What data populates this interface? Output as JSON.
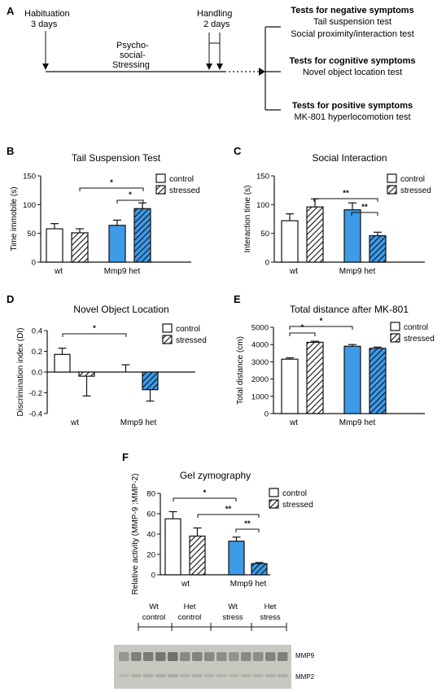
{
  "colors": {
    "control_fill": "#ffffff",
    "het_fill": "#3d9be8",
    "stroke": "#111111",
    "gel_bg": "#c9c8c0",
    "gel_band": "#6c6c6c"
  },
  "panel_a": {
    "letter": "A",
    "habituation_line1": "Habituation",
    "habituation_line2": "3 days",
    "psycho_line1": "Psycho-",
    "psycho_line2": "social-",
    "psycho_line3": "Stressing",
    "handling_line1": "Handling",
    "handling_line2": "2 days",
    "neg_title": "Tests for negative symptoms",
    "neg_line1": "Tail suspension test",
    "neg_line2": "Social proximity/interaction test",
    "cog_title": "Tests for cognitive symptoms",
    "cog_line1": "Novel object location test",
    "pos_title": "Tests for positive symptoms",
    "pos_line1": "MK-801 hyperlocomotion test"
  },
  "legend": {
    "control": "control",
    "stressed": "stressed"
  },
  "chart_data": [
    {
      "id": "B",
      "type": "bar",
      "title": "Tail Suspension Test",
      "ylabel": "Time immobile (s)",
      "categories": [
        "wt",
        "Mmp9 het"
      ],
      "series": [
        {
          "name": "control",
          "values": [
            58,
            64
          ],
          "errors": [
            9,
            9
          ]
        },
        {
          "name": "stressed",
          "values": [
            51,
            93
          ],
          "errors": [
            7,
            10
          ]
        }
      ],
      "ylim": [
        0,
        150
      ],
      "yticks": [
        0,
        50,
        100,
        150
      ],
      "significance": [
        {
          "label": "*",
          "between": "wt stressed vs Mmp9 het stressed"
        },
        {
          "label": "*",
          "between": "Mmp9 het control vs Mmp9 het stressed"
        }
      ]
    },
    {
      "id": "C",
      "type": "bar",
      "title": "Social Interaction",
      "ylabel": "Interaction time (s)",
      "categories": [
        "wt",
        "Mmp9 het"
      ],
      "series": [
        {
          "name": "control",
          "values": [
            72,
            91
          ],
          "errors": [
            12,
            12
          ]
        },
        {
          "name": "stressed",
          "values": [
            96,
            46
          ],
          "errors": [
            14,
            6
          ]
        }
      ],
      "ylim": [
        0,
        150
      ],
      "yticks": [
        0,
        50,
        100,
        150
      ],
      "significance": [
        {
          "label": "**",
          "between": "wt stressed vs Mmp9 het stressed"
        },
        {
          "label": "**",
          "between": "Mmp9 het control vs Mmp9 het stressed"
        }
      ]
    },
    {
      "id": "D",
      "type": "bar",
      "title": "Novel Object Location",
      "ylabel": "Discrimination index (DI)",
      "categories": [
        "wt",
        "Mmp9 het"
      ],
      "series": [
        {
          "name": "control",
          "values": [
            0.17,
            0.0
          ],
          "errors": [
            0.06,
            0.07
          ]
        },
        {
          "name": "stressed",
          "values": [
            -0.04,
            -0.17
          ],
          "errors": [
            0.19,
            0.11
          ]
        }
      ],
      "ylim": [
        -0.4,
        0.4
      ],
      "yticks": [
        -0.4,
        -0.2,
        0.0,
        0.2,
        0.4
      ],
      "significance": [
        {
          "label": "*",
          "between": "wt control vs Mmp9 het control"
        }
      ]
    },
    {
      "id": "E",
      "type": "bar",
      "title": "Total distance after MK-801",
      "ylabel": "Total distance (cm)",
      "categories": [
        "wt",
        "Mmp9 het"
      ],
      "series": [
        {
          "name": "control",
          "values": [
            3150,
            3900
          ],
          "errors": [
            80,
            100
          ]
        },
        {
          "name": "stressed",
          "values": [
            4130,
            3780
          ],
          "errors": [
            60,
            70
          ]
        }
      ],
      "ylim": [
        0,
        5000
      ],
      "yticks": [
        0,
        1000,
        2000,
        3000,
        4000,
        5000
      ],
      "significance": [
        {
          "label": "*",
          "between": "wt control vs wt stressed"
        },
        {
          "label": "*",
          "between": "wt control vs Mmp9 het control"
        }
      ]
    },
    {
      "id": "F",
      "type": "bar",
      "title": "Gel zymography",
      "ylabel": "Relative activity (MMP-9 :MMP-2)",
      "categories": [
        "wt",
        "Mmp9 het"
      ],
      "series": [
        {
          "name": "control",
          "values": [
            55,
            33
          ],
          "errors": [
            7,
            4
          ]
        },
        {
          "name": "stressed",
          "values": [
            38,
            11
          ],
          "errors": [
            8,
            1
          ]
        }
      ],
      "ylim": [
        0,
        80
      ],
      "yticks": [
        0,
        20,
        40,
        60,
        80
      ],
      "significance": [
        {
          "label": "*",
          "between": "wt control vs Mmp9 het control"
        },
        {
          "label": "**",
          "between": "wt stressed vs Mmp9 het stressed"
        },
        {
          "label": "**",
          "between": "Mmp9 het control vs Mmp9 het stressed"
        }
      ]
    }
  ],
  "gel": {
    "groups": [
      {
        "line1": "Wt",
        "line2": "control"
      },
      {
        "line1": "Het",
        "line2": "control"
      },
      {
        "line1": "Wt",
        "line2": "stress"
      },
      {
        "line1": "Het",
        "line2": "stress"
      }
    ],
    "band_upper": "MMP9",
    "band_lower": "MMP2",
    "lane_intensity": [
      0.55,
      0.8,
      0.85,
      0.9,
      0.95,
      0.7,
      0.75,
      0.7,
      0.65,
      0.6,
      0.7,
      0.65,
      0.75,
      0.8
    ]
  }
}
